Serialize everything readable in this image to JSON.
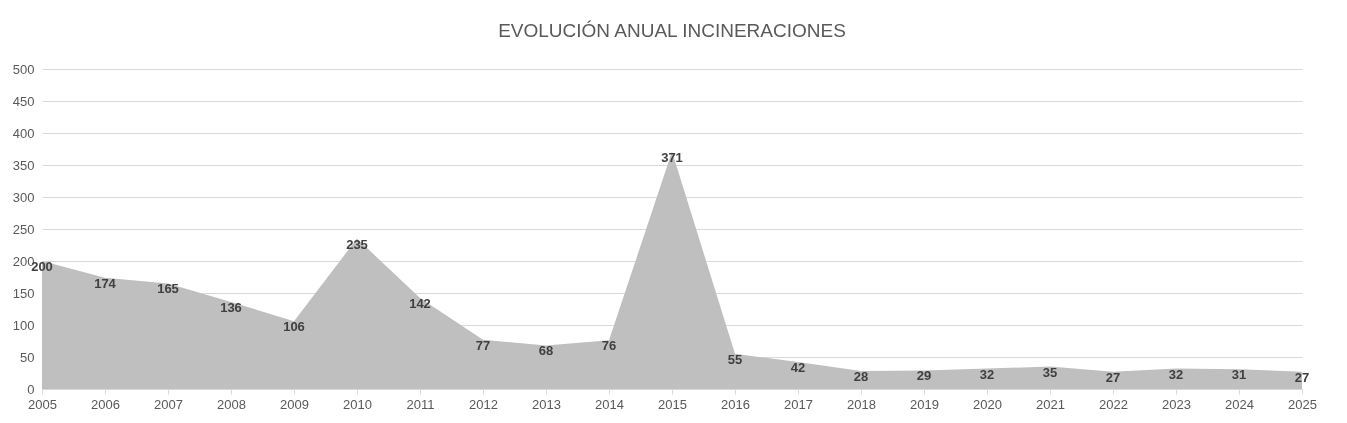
{
  "chart_data": {
    "type": "area",
    "title": "EVOLUCIÓN ANUAL INCINERACIONES",
    "categories": [
      "2005",
      "2006",
      "2007",
      "2008",
      "2009",
      "2010",
      "2011",
      "2012",
      "2013",
      "2014",
      "2015",
      "2016",
      "2017",
      "2018",
      "2019",
      "2020",
      "2021",
      "2022",
      "2023",
      "2024",
      "2025"
    ],
    "values": [
      200,
      174,
      165,
      136,
      106,
      235,
      142,
      77,
      68,
      76,
      371,
      55,
      42,
      28,
      29,
      32,
      35,
      27,
      32,
      31,
      27
    ],
    "color": "#bfbfbf",
    "ylim": [
      0,
      500
    ],
    "yticks": [
      0,
      50,
      100,
      150,
      200,
      250,
      300,
      350,
      400,
      450,
      500
    ],
    "grid": "y",
    "data_labels": true
  }
}
